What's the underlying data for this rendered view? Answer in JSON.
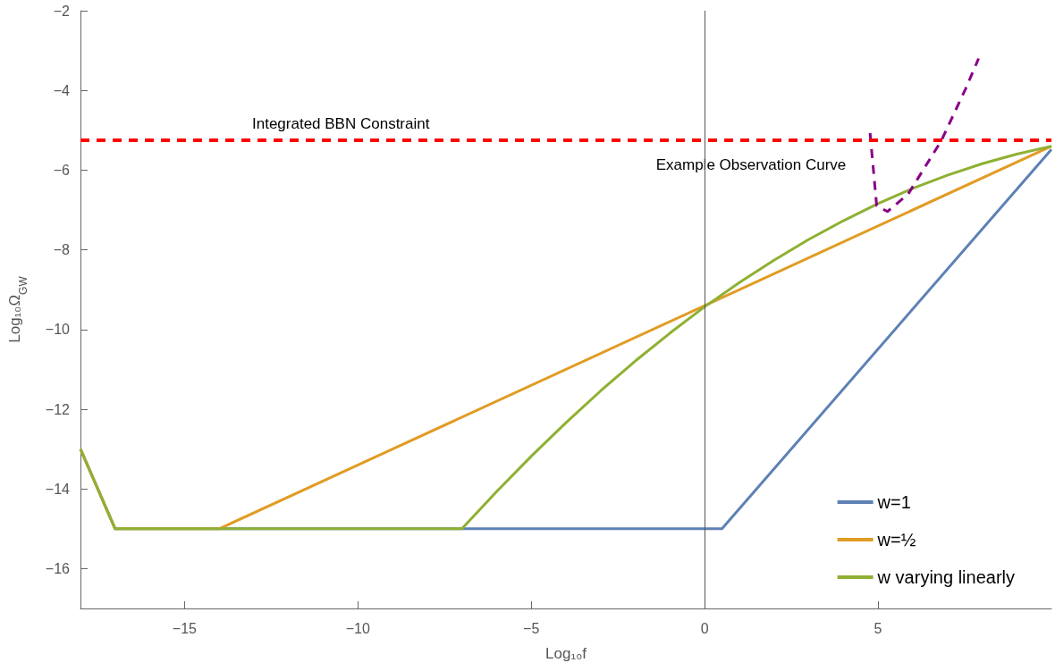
{
  "chart_data": {
    "type": "line",
    "xlabel": "Log₁₀f",
    "ylabel": "Log₁₀Ω$_{GW}$",
    "xlim": [
      -18,
      10
    ],
    "xticks": [
      -15,
      -10,
      -5,
      0,
      5
    ],
    "ylim": [
      -17,
      -2
    ],
    "yticks": [
      -16,
      -14,
      -12,
      -10,
      -8,
      -6,
      -4,
      -2
    ],
    "grid": false,
    "legend": "bottom right",
    "marker": "none",
    "line_style": "solid",
    "series": [
      {
        "name": "w=1",
        "color": "#5e81b5",
        "x": [
          -18,
          -17,
          0.5,
          10
        ],
        "values": [
          -13,
          -15,
          -15,
          -5.48
        ]
      },
      {
        "name": "w=½",
        "color": "#e19c24",
        "x": [
          -18,
          -17,
          -14,
          10
        ],
        "values": [
          -13,
          -15,
          -15,
          -5.4
        ]
      },
      {
        "name": "w varying linearly",
        "color": "#8fb032",
        "x": [
          -18,
          -17,
          -7,
          -6,
          -5,
          -4,
          -3,
          -2,
          -1,
          0,
          1,
          2,
          3,
          4,
          5,
          6,
          7,
          8,
          9,
          10
        ],
        "values": [
          -13,
          -15,
          -15,
          -14.07,
          -13.18,
          -12.34,
          -11.54,
          -10.79,
          -10.09,
          -9.43,
          -8.82,
          -8.26,
          -7.74,
          -7.27,
          -6.84,
          -6.46,
          -6.13,
          -5.84,
          -5.6,
          -5.4
        ]
      },
      {
        "color": "#880088",
        "line_style": "dashed",
        "x": [
          4.77,
          4.96,
          5.27,
          5.87,
          6.82,
          7.52,
          7.9
        ],
        "values": [
          -5.07,
          -6.89,
          -7.04,
          -6.6,
          -5.27,
          -3.97,
          -3.2
        ]
      }
    ],
    "ref_lines": [
      {
        "axis": "y",
        "value": -5.25,
        "label": "Integrated BBN Constraint",
        "color": "#ff0000",
        "line_style": "dashed"
      },
      {
        "axis": "x",
        "value": 0,
        "color": "#555555",
        "line_style": "solid"
      }
    ],
    "annotations": [
      "Example Observation Curve"
    ]
  }
}
